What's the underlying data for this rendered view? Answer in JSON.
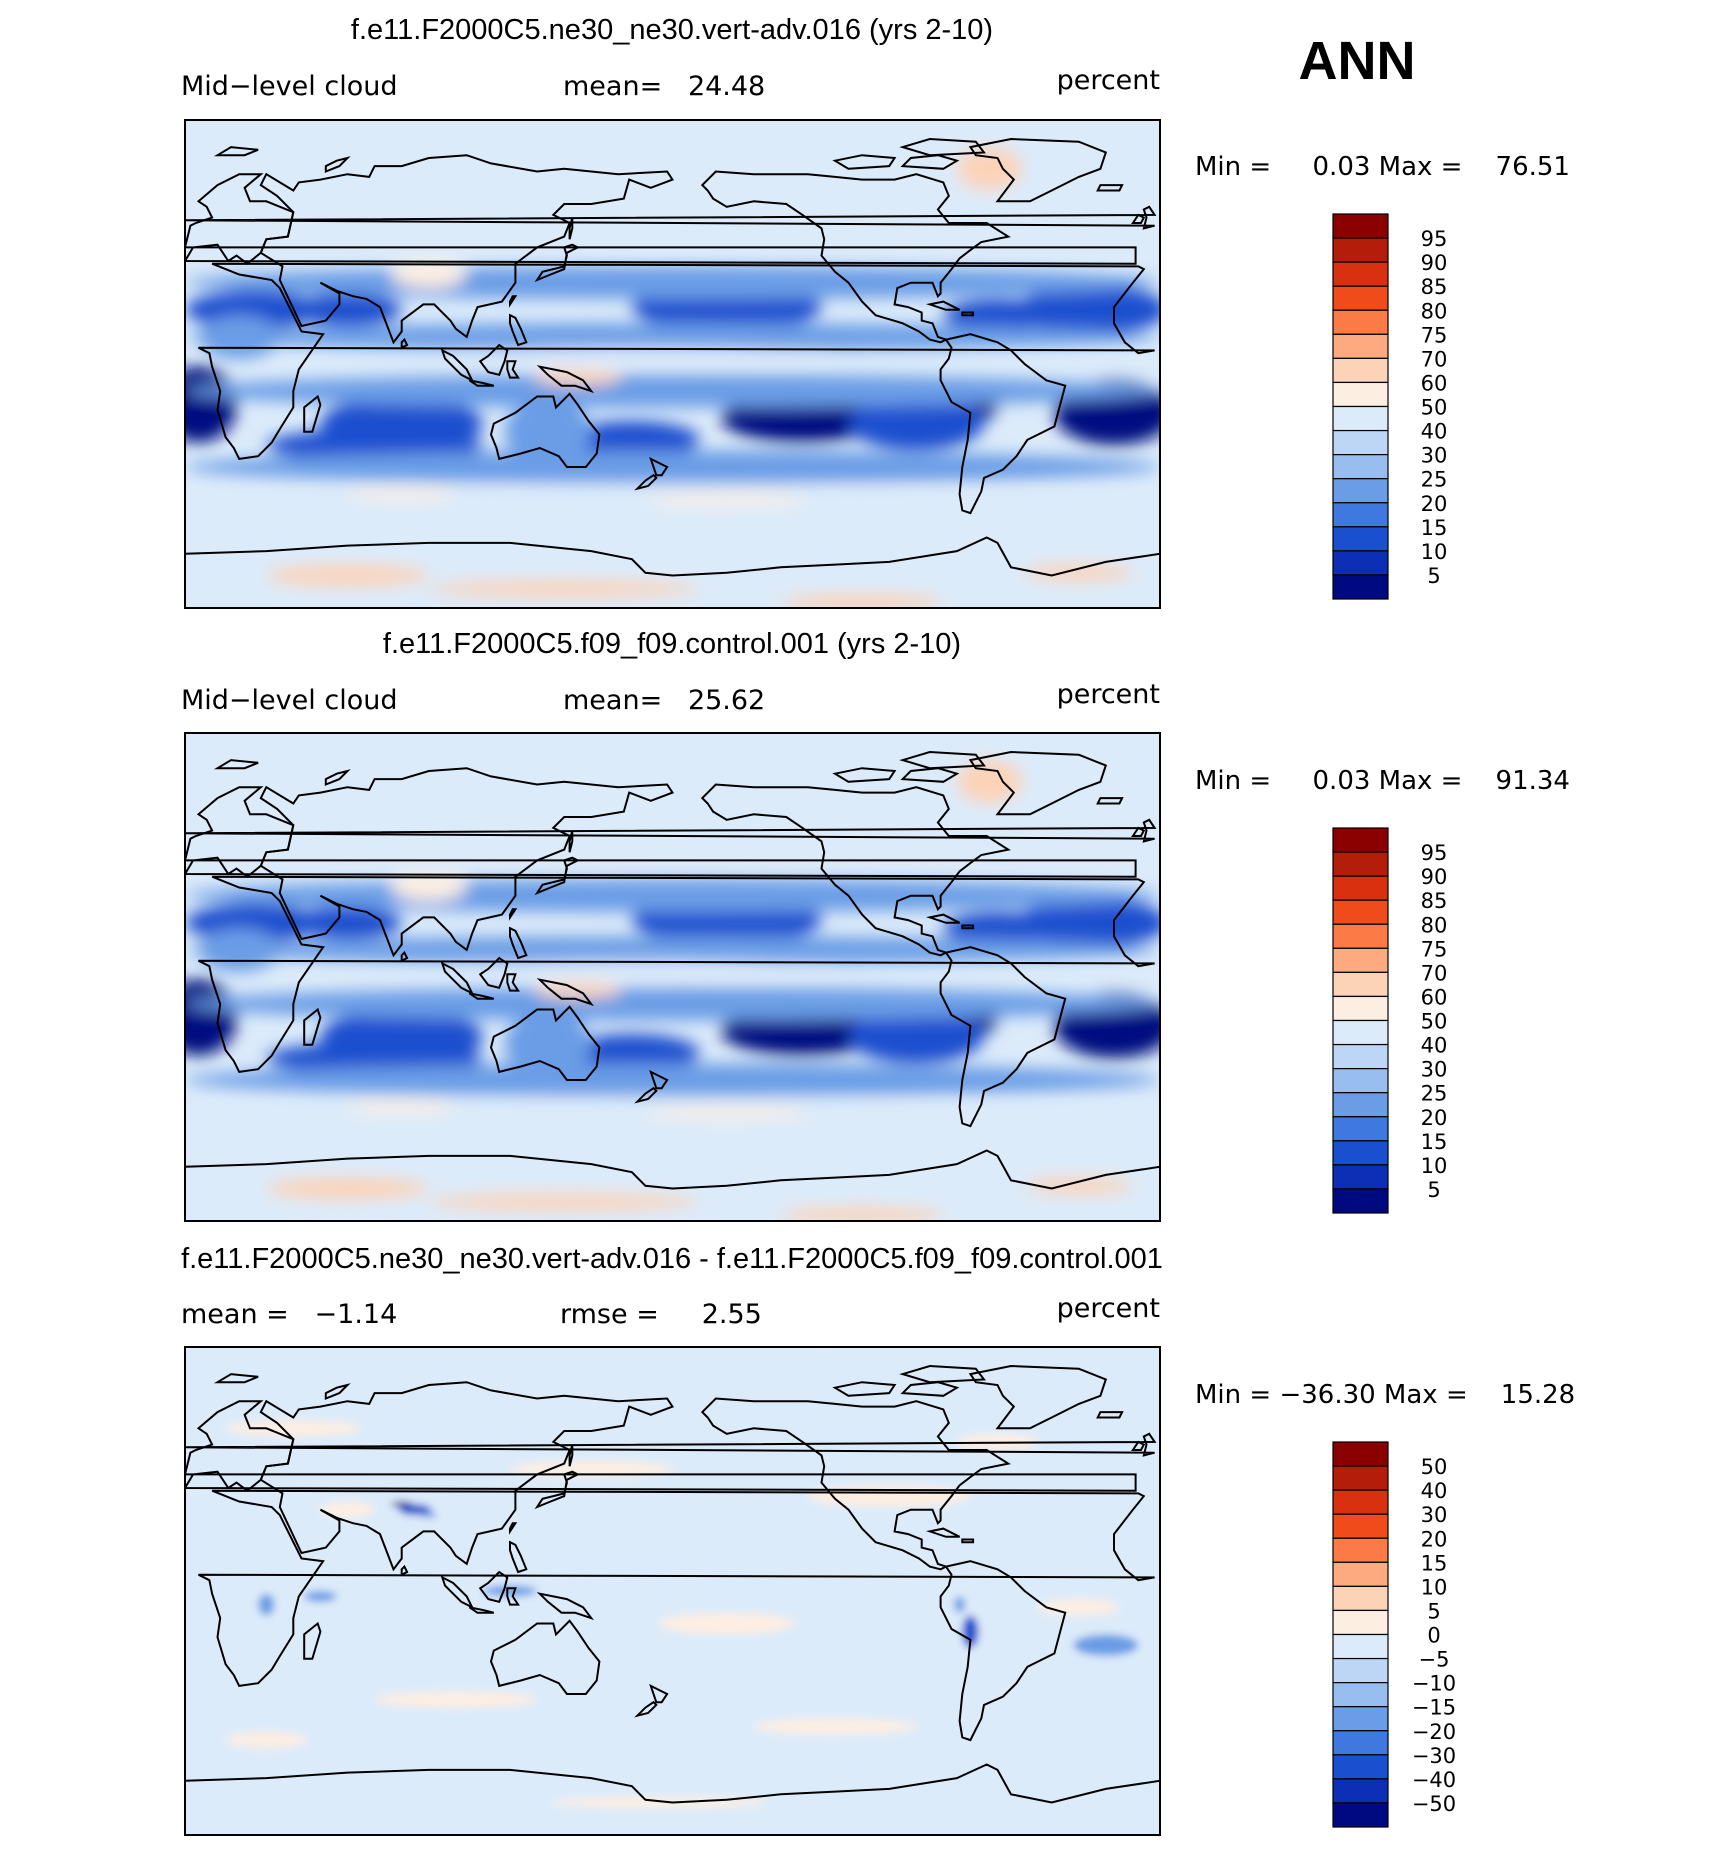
{
  "season": "ANN",
  "panels": [
    {
      "title": "f.e11.F2000C5.ne30_ne30.vert-adv.016 (yrs 2-10)",
      "left_label": "Mid−level cloud",
      "center_label": "mean=   24.48",
      "units": "percent",
      "minmax": "Min =     0.03 Max =    76.51",
      "colorbar": {
        "labels": [
          "95",
          "90",
          "85",
          "80",
          "75",
          "70",
          "60",
          "50",
          "40",
          "30",
          "25",
          "20",
          "15",
          "10",
          "5"
        ],
        "colors": [
          "#8b0000",
          "#b51d0b",
          "#d9300f",
          "#f04b1a",
          "#fc7a45",
          "#fdaa80",
          "#fdd3b8",
          "#fdeee2",
          "#dcebfa",
          "#bdd6f5",
          "#98bef0",
          "#6a9de6",
          "#3f79e0",
          "#1a4fcf",
          "#0d2fb5",
          "#000a80"
        ]
      }
    },
    {
      "title": "f.e11.F2000C5.f09_f09.control.001 (yrs 2-10)",
      "left_label": "Mid−level cloud",
      "center_label": "mean=   25.62",
      "units": "percent",
      "minmax": "Min =     0.03 Max =    91.34",
      "colorbar": {
        "labels": [
          "95",
          "90",
          "85",
          "80",
          "75",
          "70",
          "60",
          "50",
          "40",
          "30",
          "25",
          "20",
          "15",
          "10",
          "5"
        ],
        "colors": [
          "#8b0000",
          "#b51d0b",
          "#d9300f",
          "#f04b1a",
          "#fc7a45",
          "#fdaa80",
          "#fdd3b8",
          "#fdeee2",
          "#dcebfa",
          "#bdd6f5",
          "#98bef0",
          "#6a9de6",
          "#3f79e0",
          "#1a4fcf",
          "#0d2fb5",
          "#000a80"
        ]
      }
    },
    {
      "title": "f.e11.F2000C5.ne30_ne30.vert-adv.016 - f.e11.F2000C5.f09_f09.control.001",
      "left_label": "mean =   −1.14",
      "center_label": "rmse =     2.55",
      "units": "percent",
      "minmax": "Min = −36.30 Max =    15.28",
      "colorbar": {
        "labels": [
          "50",
          "40",
          "30",
          "20",
          "15",
          "10",
          "5",
          "0",
          "−5",
          "−10",
          "−15",
          "−20",
          "−30",
          "−40",
          "−50"
        ],
        "colors": [
          "#8b0000",
          "#b51d0b",
          "#d9300f",
          "#f04b1a",
          "#fc7a45",
          "#fdaa80",
          "#fdd3b8",
          "#fdeee2",
          "#dcebfa",
          "#bdd6f5",
          "#98bef0",
          "#6a9de6",
          "#3f79e0",
          "#1a4fcf",
          "#0d2fb5",
          "#000a80"
        ]
      }
    }
  ],
  "map_style": {
    "ocean_light": "#dcebfa",
    "band_mid": "#6a9de6",
    "band_deep": "#1a4fcf",
    "band_core": "#000a80",
    "warm_pale": "#fdeee2",
    "warm": "#fdd3b8",
    "coast": "#000000"
  }
}
